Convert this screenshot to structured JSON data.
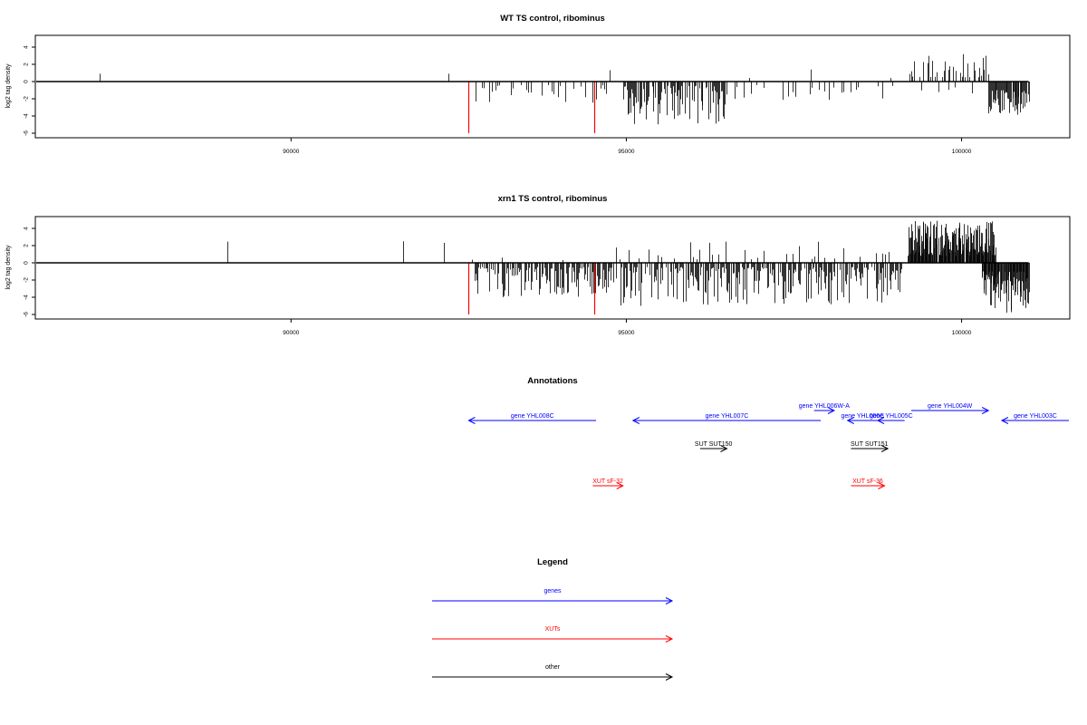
{
  "colors": {
    "gene": "#0000ff",
    "xut": "#ff0000",
    "other": "#000000",
    "axis": "#000000"
  },
  "chart_data": [
    {
      "type": "bar",
      "title": "WT TS control, ribominus",
      "ylabel": "log2 tag density",
      "xlim": [
        86200,
        101600
      ],
      "ylim": [
        -6,
        5
      ],
      "xticks": [
        90000,
        95000,
        100000
      ],
      "yticks": [
        -6,
        -4,
        -2,
        0,
        2,
        4
      ],
      "baseline": [
        86200,
        101000
      ],
      "highlight": [
        {
          "x": 92650,
          "y": -6
        },
        {
          "x": 94520,
          "y": -6
        }
      ],
      "bands": [
        {
          "x0": 86500,
          "x1": 87800,
          "sign": 1,
          "pmin": 1,
          "lo": 0.9,
          "hi": 1.0,
          "n": 1,
          "seed": 1
        },
        {
          "x0": 91900,
          "x1": 92600,
          "sign": -1,
          "pmin": 0.2,
          "lo": 0.5,
          "hi": 2.0,
          "n": 8,
          "seed": 2
        },
        {
          "x0": 92300,
          "x1": 92400,
          "sign": 1,
          "pmin": 1,
          "lo": 0.8,
          "hi": 1.0,
          "n": 1,
          "seed": 3
        },
        {
          "x0": 92700,
          "x1": 94700,
          "sign": -1,
          "pmin": 0.45,
          "lo": 0.4,
          "hi": 3.0,
          "n": 70,
          "seed": 4
        },
        {
          "x0": 94700,
          "x1": 94800,
          "sign": 1,
          "pmin": 1,
          "lo": 1.3,
          "hi": 1.5,
          "n": 1,
          "seed": 5
        },
        {
          "x0": 94950,
          "x1": 96500,
          "sign": -1,
          "pmin": 0.7,
          "lo": 0.5,
          "hi": 5.0,
          "n": 120,
          "seed": 6
        },
        {
          "x0": 96500,
          "x1": 99000,
          "sign": -1,
          "pmin": 0.3,
          "lo": 0.3,
          "hi": 2.2,
          "n": 70,
          "seed": 7
        },
        {
          "x0": 96700,
          "x1": 99200,
          "sign": 1,
          "pmin": 0.2,
          "lo": 0.4,
          "hi": 1.5,
          "n": 20,
          "seed": 8
        },
        {
          "x0": 99200,
          "x1": 100400,
          "sign": 1,
          "pmin": 0.6,
          "lo": 0.5,
          "hi": 3.2,
          "n": 55,
          "seed": 9
        },
        {
          "x0": 99200,
          "x1": 100400,
          "sign": -1,
          "pmin": 0.3,
          "lo": 0.4,
          "hi": 2.0,
          "n": 25,
          "seed": 10
        },
        {
          "x0": 100400,
          "x1": 101000,
          "sign": -1,
          "pmin": 0.85,
          "lo": 1.0,
          "hi": 4.0,
          "n": 60,
          "seed": 11
        }
      ]
    },
    {
      "type": "bar",
      "title": "xrn1 TS control, ribominus",
      "ylabel": "log2 tag density",
      "xlim": [
        86200,
        101600
      ],
      "ylim": [
        -6,
        5
      ],
      "xticks": [
        90000,
        95000,
        100000
      ],
      "yticks": [
        -6,
        -4,
        -2,
        0,
        2,
        4
      ],
      "baseline": [
        86200,
        101000
      ],
      "highlight": [
        {
          "x": 92650,
          "y": -6
        },
        {
          "x": 94520,
          "y": -6
        }
      ],
      "bands": [
        {
          "x0": 89000,
          "x1": 89100,
          "sign": 1,
          "pmin": 1,
          "lo": 2.4,
          "hi": 2.5,
          "n": 1,
          "seed": 21
        },
        {
          "x0": 91650,
          "x1": 91700,
          "sign": 1,
          "pmin": 1,
          "lo": 2.5,
          "hi": 2.6,
          "n": 1,
          "seed": 22
        },
        {
          "x0": 92250,
          "x1": 92300,
          "sign": 1,
          "pmin": 1,
          "lo": 2.3,
          "hi": 2.4,
          "n": 1,
          "seed": 23
        },
        {
          "x0": 91700,
          "x1": 92600,
          "sign": -1,
          "pmin": 0.25,
          "lo": 0.5,
          "hi": 2.0,
          "n": 10,
          "seed": 24
        },
        {
          "x0": 92700,
          "x1": 94800,
          "sign": -1,
          "pmin": 0.85,
          "lo": 0.5,
          "hi": 4.0,
          "n": 130,
          "seed": 25
        },
        {
          "x0": 92700,
          "x1": 94800,
          "sign": 1,
          "pmin": 0.2,
          "lo": 0.3,
          "hi": 1.2,
          "n": 15,
          "seed": 26
        },
        {
          "x0": 94850,
          "x1": 99100,
          "sign": -1,
          "pmin": 0.85,
          "lo": 0.5,
          "hi": 5.0,
          "n": 260,
          "seed": 27
        },
        {
          "x0": 94850,
          "x1": 99100,
          "sign": 1,
          "pmin": 0.45,
          "lo": 0.4,
          "hi": 2.6,
          "n": 90,
          "seed": 28
        },
        {
          "x0": 99200,
          "x1": 100500,
          "sign": 1,
          "pmin": 0.95,
          "lo": 0.8,
          "hi": 4.9,
          "n": 170,
          "seed": 29
        },
        {
          "x0": 100300,
          "x1": 101000,
          "sign": -1,
          "pmin": 0.95,
          "lo": 1.0,
          "hi": 5.8,
          "n": 90,
          "seed": 30
        }
      ]
    }
  ],
  "annotations": {
    "title": "Annotations",
    "items": [
      {
        "label": "gene YHL008C",
        "kind": "gene",
        "x0": 92650,
        "x1": 94550,
        "dir": "left",
        "row": 1
      },
      {
        "label": "gene YHL007C",
        "kind": "gene",
        "x0": 95100,
        "x1": 97900,
        "dir": "left",
        "row": 1
      },
      {
        "label": "gene YHL006W-A",
        "kind": "gene",
        "x0": 97800,
        "x1": 98100,
        "dir": "right",
        "row": 0
      },
      {
        "label": "gene YHL006C",
        "kind": "gene",
        "x0": 98300,
        "x1": 98750,
        "dir": "left",
        "row": 1
      },
      {
        "label": "gene YHL005C",
        "kind": "gene",
        "x0": 98750,
        "x1": 99150,
        "dir": "left",
        "row": 1
      },
      {
        "label": "gene YHL004W",
        "kind": "gene",
        "x0": 99250,
        "x1": 100400,
        "dir": "right",
        "row": 0
      },
      {
        "label": "gene YHL003C",
        "kind": "gene",
        "x0": 100600,
        "x1": 101600,
        "dir": "left",
        "row": 1
      },
      {
        "label": "SUT SUT150",
        "kind": "other",
        "x0": 96100,
        "x1": 96500,
        "dir": "right",
        "row": 2
      },
      {
        "label": "SUT SUT151",
        "kind": "other",
        "x0": 98350,
        "x1": 98900,
        "dir": "right",
        "row": 2
      },
      {
        "label": "XUT sF-32",
        "kind": "xut",
        "x0": 94500,
        "x1": 94950,
        "dir": "right",
        "row": 3
      },
      {
        "label": "XUT sF-36",
        "kind": "xut",
        "x0": 98350,
        "x1": 98850,
        "dir": "right",
        "row": 3
      }
    ]
  },
  "legend": {
    "title": "Legend",
    "items": [
      {
        "label": "genes",
        "kind": "gene"
      },
      {
        "label": "XUTs",
        "kind": "xut"
      },
      {
        "label": "other",
        "kind": "other"
      }
    ]
  }
}
